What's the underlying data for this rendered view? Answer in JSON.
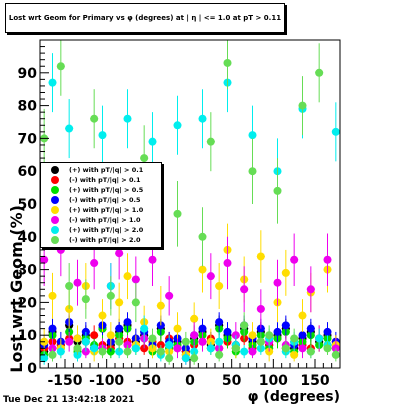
{
  "title": "Lost wrt Geom for Primary vs φ (degrees) at | η | <= 1.0 at pT > 0.11",
  "timestamp": "Tue Dec 21 13:42:18 2021",
  "chart_data": {
    "type": "scatter",
    "xlabel": "φ (degrees)",
    "ylabel": "Lost wrt Geom (%)",
    "xlim": [
      -180,
      180
    ],
    "ylim": [
      0,
      100
    ],
    "x_ticks": [
      "-150",
      "-100",
      "-50",
      "0",
      "50",
      "100",
      "150"
    ],
    "x_tick_values": [
      -150,
      -100,
      -50,
      0,
      50,
      100,
      150
    ],
    "y_ticks": [
      "0",
      "10",
      "20",
      "30",
      "40",
      "50",
      "60",
      "70",
      "80",
      "90"
    ],
    "y_tick_values": [
      0,
      10,
      20,
      30,
      40,
      50,
      60,
      70,
      80,
      90
    ],
    "legend_position": "left-middle",
    "series": [
      {
        "name": "(+) with pT/|q| > 0.1",
        "color": "#000000",
        "x": [
          -175,
          -165,
          -155,
          -145,
          -135,
          -125,
          -115,
          -105,
          -95,
          -85,
          -75,
          -65,
          -55,
          -45,
          -35,
          -25,
          -15,
          -5,
          5,
          15,
          25,
          35,
          45,
          55,
          65,
          75,
          85,
          95,
          105,
          115,
          125,
          135,
          145,
          155,
          165,
          175
        ],
        "y": [
          5,
          11,
          7,
          13,
          8,
          10,
          6,
          12,
          7,
          11,
          13,
          8,
          10,
          6,
          12,
          7,
          8,
          5,
          9,
          11,
          7,
          13,
          10,
          6,
          12,
          8,
          11,
          7,
          10,
          12,
          6,
          9,
          11,
          8,
          10,
          7
        ],
        "err": [
          2,
          3,
          2,
          3,
          2,
          3,
          2,
          3,
          2,
          3,
          3,
          2,
          3,
          2,
          3,
          2,
          2,
          2,
          2,
          3,
          2,
          3,
          3,
          2,
          3,
          2,
          3,
          2,
          3,
          3,
          2,
          2,
          3,
          2,
          3,
          2
        ]
      },
      {
        "name": "(-) with pT/|q| > 0.1",
        "color": "#ff0000",
        "x": [
          -175,
          -165,
          -155,
          -145,
          -135,
          -125,
          -115,
          -105,
          -95,
          -85,
          -75,
          -65,
          -55,
          -45,
          -35,
          -25,
          -15,
          -5,
          5,
          15,
          25,
          35,
          45,
          55,
          65,
          75,
          85,
          95,
          105,
          115,
          125,
          135,
          145,
          155,
          165,
          175
        ],
        "y": [
          6,
          8,
          7,
          9,
          6,
          8,
          10,
          7,
          6,
          9,
          8,
          7,
          6,
          8,
          7,
          9,
          6,
          5,
          7,
          8,
          9,
          6,
          8,
          7,
          9,
          6,
          8,
          7,
          9,
          6,
          8,
          7,
          6,
          9,
          7,
          8
        ],
        "err": [
          2,
          2,
          2,
          2,
          2,
          2,
          3,
          2,
          2,
          2,
          2,
          2,
          2,
          2,
          2,
          2,
          2,
          2,
          2,
          2,
          2,
          2,
          2,
          2,
          2,
          2,
          2,
          2,
          2,
          2,
          2,
          2,
          2,
          2,
          2,
          2
        ]
      },
      {
        "name": "(+) with pT/|q| > 0.5",
        "color": "#00dd00",
        "x": [
          -175,
          -165,
          -155,
          -145,
          -135,
          -125,
          -115,
          -105,
          -95,
          -85,
          -75,
          -65,
          -55,
          -45,
          -35,
          -25,
          -15,
          -5,
          5,
          15,
          25,
          35,
          45,
          55,
          65,
          75,
          85,
          95,
          105,
          115,
          125,
          135,
          145,
          155,
          165,
          175
        ],
        "y": [
          4,
          10,
          6,
          11,
          5,
          9,
          7,
          12,
          5,
          10,
          12,
          6,
          9,
          5,
          11,
          6,
          7,
          4,
          8,
          10,
          6,
          12,
          9,
          5,
          11,
          7,
          10,
          6,
          9,
          11,
          5,
          8,
          10,
          7,
          9,
          6
        ],
        "err": [
          2,
          3,
          2,
          3,
          2,
          3,
          2,
          3,
          2,
          3,
          3,
          2,
          3,
          2,
          3,
          2,
          2,
          2,
          2,
          3,
          2,
          3,
          3,
          2,
          3,
          2,
          3,
          2,
          3,
          3,
          2,
          2,
          3,
          2,
          3,
          2
        ]
      },
      {
        "name": "(-) with pT/|q| > 0.5",
        "color": "#0000ff",
        "x": [
          -175,
          -165,
          -155,
          -145,
          -135,
          -125,
          -115,
          -105,
          -95,
          -85,
          -75,
          -65,
          -55,
          -45,
          -35,
          -25,
          -15,
          -5,
          5,
          15,
          25,
          35,
          45,
          55,
          65,
          75,
          85,
          95,
          105,
          115,
          125,
          135,
          145,
          155,
          165,
          175
        ],
        "y": [
          7,
          12,
          8,
          14,
          9,
          11,
          6,
          13,
          8,
          12,
          14,
          9,
          11,
          7,
          13,
          8,
          9,
          6,
          10,
          12,
          8,
          14,
          11,
          7,
          13,
          9,
          12,
          8,
          11,
          13,
          7,
          10,
          12,
          9,
          11,
          8
        ],
        "err": [
          3,
          3,
          3,
          3,
          3,
          3,
          2,
          3,
          3,
          3,
          3,
          3,
          3,
          2,
          3,
          3,
          3,
          2,
          3,
          3,
          3,
          3,
          3,
          2,
          3,
          3,
          3,
          3,
          3,
          3,
          2,
          3,
          3,
          3,
          3,
          3
        ]
      },
      {
        "name": "(+) with pT/|q| > 1.0",
        "color": "#ffdd00",
        "x": [
          -175,
          -165,
          -155,
          -145,
          -135,
          -125,
          -115,
          -105,
          -95,
          -85,
          -75,
          -65,
          -55,
          -45,
          -35,
          -25,
          -15,
          -5,
          5,
          15,
          25,
          35,
          45,
          55,
          65,
          75,
          85,
          95,
          105,
          115,
          125,
          135,
          145,
          155,
          165,
          175
        ],
        "y": [
          8,
          22,
          6,
          18,
          9,
          25,
          5,
          16,
          10,
          20,
          28,
          7,
          14,
          6,
          19,
          5,
          12,
          4,
          15,
          30,
          8,
          25,
          36,
          6,
          27,
          10,
          34,
          5,
          20,
          29,
          4,
          16,
          23,
          9,
          30,
          7
        ],
        "err": [
          4,
          7,
          3,
          6,
          4,
          7,
          3,
          5,
          4,
          6,
          7,
          3,
          5,
          3,
          6,
          3,
          5,
          2,
          5,
          7,
          4,
          7,
          8,
          3,
          7,
          4,
          8,
          3,
          6,
          7,
          2,
          5,
          6,
          4,
          7,
          3
        ]
      },
      {
        "name": "(-) with pT/|q| > 1.0",
        "color": "#ee00ee",
        "x": [
          -175,
          -165,
          -155,
          -145,
          -135,
          -125,
          -115,
          -105,
          -95,
          -85,
          -75,
          -65,
          -55,
          -45,
          -35,
          -25,
          -15,
          -5,
          5,
          15,
          25,
          35,
          45,
          55,
          65,
          75,
          85,
          95,
          105,
          115,
          125,
          135,
          145,
          155,
          165,
          175
        ],
        "y": [
          33,
          6,
          36,
          8,
          26,
          5,
          32,
          6,
          25,
          35,
          7,
          27,
          9,
          33,
          5,
          22,
          6,
          3,
          10,
          8,
          28,
          6,
          32,
          10,
          24,
          5,
          18,
          8,
          26,
          7,
          33,
          6,
          24,
          9,
          33,
          6
        ],
        "err": [
          8,
          3,
          8,
          3,
          7,
          2,
          8,
          3,
          7,
          8,
          3,
          7,
          3,
          8,
          2,
          6,
          3,
          2,
          4,
          3,
          7,
          3,
          8,
          4,
          7,
          2,
          6,
          3,
          7,
          3,
          8,
          3,
          7,
          4,
          8,
          3
        ]
      },
      {
        "name": "(+) with pT/|q| > 2.0",
        "color": "#00eeee",
        "x": [
          -175,
          -165,
          -155,
          -145,
          -135,
          -125,
          -115,
          -105,
          -95,
          -85,
          -75,
          -65,
          -55,
          -45,
          -35,
          -25,
          -15,
          -5,
          5,
          15,
          25,
          35,
          45,
          55,
          65,
          75,
          85,
          95,
          105,
          115,
          125,
          135,
          145,
          155,
          165,
          175
        ],
        "y": [
          3,
          87,
          5,
          73,
          4,
          8,
          6,
          71,
          25,
          5,
          76,
          6,
          12,
          69,
          4,
          7,
          74,
          3,
          5,
          76,
          6,
          8,
          87,
          7,
          5,
          71,
          6,
          9,
          60,
          5,
          8,
          79,
          5,
          9,
          7,
          72
        ],
        "err": [
          2,
          9,
          2,
          9,
          2,
          3,
          2,
          9,
          7,
          2,
          9,
          2,
          4,
          9,
          2,
          3,
          9,
          2,
          2,
          9,
          2,
          3,
          9,
          3,
          2,
          9,
          2,
          3,
          10,
          2,
          3,
          9,
          2,
          3,
          3,
          9
        ]
      },
      {
        "name": "(-) with pT/|q| > 2.0",
        "color": "#66dd55",
        "x": [
          -175,
          -165,
          -155,
          -145,
          -135,
          -125,
          -115,
          -105,
          -95,
          -85,
          -75,
          -65,
          -55,
          -45,
          -35,
          -25,
          -15,
          -5,
          5,
          15,
          25,
          35,
          45,
          55,
          65,
          75,
          85,
          95,
          105,
          115,
          125,
          135,
          145,
          155,
          165,
          175
        ],
        "y": [
          70,
          4,
          92,
          25,
          6,
          21,
          76,
          5,
          22,
          8,
          5,
          20,
          64,
          9,
          5,
          3,
          47,
          8,
          3,
          40,
          69,
          4,
          93,
          6,
          13,
          60,
          8,
          10,
          54,
          6,
          9,
          80,
          5,
          90,
          6,
          4
        ],
        "err": [
          9,
          2,
          9,
          7,
          2,
          6,
          9,
          2,
          6,
          3,
          2,
          6,
          10,
          3,
          2,
          2,
          10,
          3,
          2,
          9,
          9,
          2,
          8,
          2,
          4,
          10,
          3,
          3,
          10,
          2,
          3,
          9,
          2,
          9,
          2,
          2
        ]
      }
    ]
  }
}
